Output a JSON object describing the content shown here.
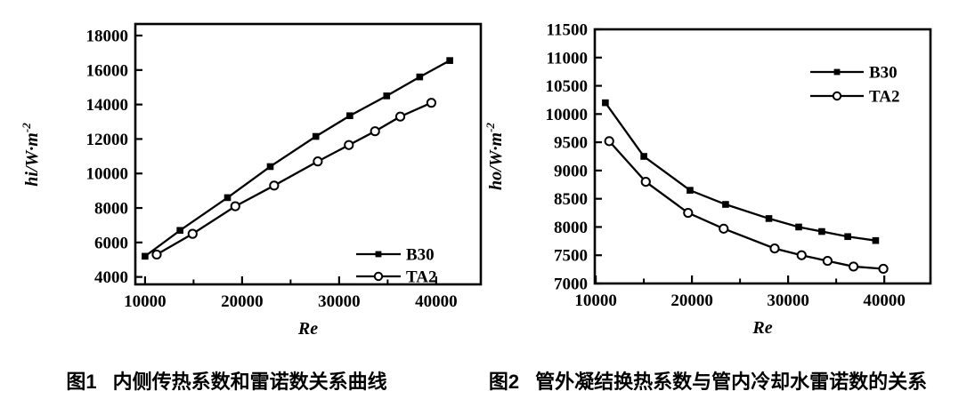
{
  "figure_ink_color": "#000000",
  "background_color": "#ffffff",
  "chart_data": [
    {
      "type": "line",
      "figure_label": "图1",
      "title": "内侧传热系数和雷诺数关系曲线",
      "xlabel": "Re",
      "ylabel": {
        "base": "hi/W·m",
        "sup": "-2"
      },
      "xlim": [
        9000,
        44600
      ],
      "ylim": [
        3570,
        18670
      ],
      "xticks": [
        10000,
        20000,
        30000,
        40000
      ],
      "xticks_minor": [
        15000,
        25000,
        35000
      ],
      "yticks": [
        4000,
        6000,
        8000,
        10000,
        12000,
        14000,
        16000,
        18000
      ],
      "grid": false,
      "legend_position": "bottom-right-inside",
      "series": [
        {
          "name": "B30",
          "marker": "filled-square",
          "color": "#000000",
          "x": [
            10000,
            13600,
            18500,
            22900,
            27600,
            31100,
            34900,
            38300,
            41400
          ],
          "y": [
            5200,
            6700,
            8600,
            10400,
            12150,
            13350,
            14500,
            15600,
            16550
          ]
        },
        {
          "name": "TA2",
          "marker": "open-circle",
          "color": "#000000",
          "x": [
            11200,
            14900,
            19300,
            23300,
            27800,
            31000,
            33700,
            36300,
            39500
          ],
          "y": [
            5300,
            6500,
            8100,
            9300,
            10700,
            11650,
            12450,
            13300,
            14100
          ]
        }
      ]
    },
    {
      "type": "line",
      "figure_label": "图2",
      "title": "管外凝结换热系数与管内冷却水雷诺数的关系",
      "xlabel": "Re",
      "ylabel": {
        "base": "ho/W·m",
        "sup": "-2"
      },
      "xlim": [
        9900,
        44800
      ],
      "ylim": [
        7000,
        11500
      ],
      "xticks": [
        10000,
        20000,
        30000,
        40000
      ],
      "xticks_minor": [
        15000,
        25000,
        35000
      ],
      "yticks": [
        7000,
        7500,
        8000,
        8500,
        9000,
        9500,
        10000,
        10500,
        11000,
        11500
      ],
      "grid": false,
      "legend_position": "top-right-inside",
      "series": [
        {
          "name": "B30",
          "marker": "filled-square",
          "color": "#000000",
          "x": [
            11000,
            15000,
            19800,
            23500,
            28000,
            31100,
            33500,
            36200,
            39100
          ],
          "y": [
            10200,
            9250,
            8650,
            8400,
            8150,
            8000,
            7920,
            7830,
            7760
          ]
        },
        {
          "name": "TA2",
          "marker": "open-circle",
          "color": "#000000",
          "x": [
            11400,
            15200,
            19600,
            23300,
            28600,
            31400,
            34100,
            36800,
            39900
          ],
          "y": [
            9520,
            8800,
            8250,
            7970,
            7620,
            7500,
            7400,
            7300,
            7260
          ]
        }
      ]
    }
  ]
}
